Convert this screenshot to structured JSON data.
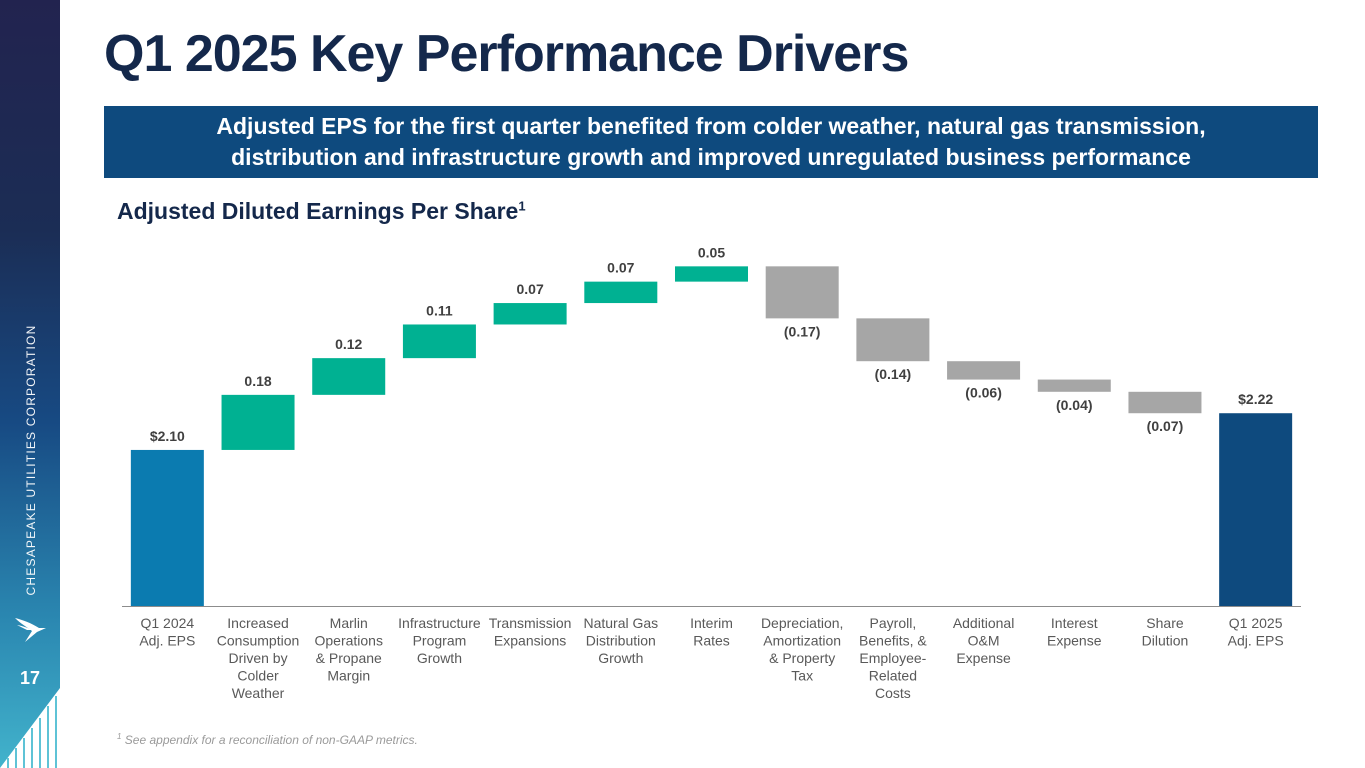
{
  "sidebar": {
    "company": "CHESAPEAKE UTILITIES CORPORATION",
    "logo_icon": "bird-logo-icon",
    "page_number": "17"
  },
  "header": {
    "title": "Q1 2025 Key Performance Drivers",
    "banner_line1": "Adjusted EPS for the first quarter benefited from colder weather, natural gas transmission,",
    "banner_line2": "distribution and infrastructure growth and improved unregulated business performance"
  },
  "chart_section": {
    "subtitle": "Adjusted Diluted Earnings Per Share",
    "subtitle_sup": "1"
  },
  "footnote": {
    "marker": "1",
    "text": "See appendix for a reconciliation of non-GAAP metrics."
  },
  "colors": {
    "start_bar": "#0b7bb0",
    "end_bar": "#0e4a7e",
    "increase": "#00b192",
    "decrease": "#a6a6a6",
    "label": "#404040",
    "category": "#595959"
  },
  "chart_data": {
    "type": "bar",
    "subtype": "waterfall",
    "title": "Adjusted Diluted Earnings Per Share",
    "xlabel": "",
    "ylabel": "",
    "ylim": [
      1.59,
      2.35
    ],
    "grid": false,
    "legend": "none",
    "categories": [
      [
        "Q1 2024",
        "Adj. EPS"
      ],
      [
        "Increased",
        "Consumption",
        "Driven by",
        "Colder",
        "Weather"
      ],
      [
        "Marlin",
        "Operations",
        "& Propane",
        "Margin"
      ],
      [
        "Infrastructure",
        "Program",
        "Growth"
      ],
      [
        "Transmission",
        "Expansions"
      ],
      [
        "Natural Gas",
        "Distribution",
        "Growth"
      ],
      [
        "Interim",
        "Rates"
      ],
      [
        "Depreciation,",
        "Amortization",
        "& Property",
        "Tax"
      ],
      [
        "Payroll,",
        "Benefits, &",
        "Employee-",
        "Related",
        "Costs"
      ],
      [
        "Additional",
        "O&M",
        "Expense"
      ],
      [
        "Interest",
        "Expense"
      ],
      [
        "Share",
        "Dilution"
      ],
      [
        "Q1 2025",
        "Adj. EPS"
      ]
    ],
    "kinds": [
      "total",
      "delta",
      "delta",
      "delta",
      "delta",
      "delta",
      "delta",
      "delta",
      "delta",
      "delta",
      "delta",
      "delta",
      "total"
    ],
    "values": [
      2.1,
      0.18,
      0.12,
      0.11,
      0.07,
      0.07,
      0.05,
      -0.17,
      -0.14,
      -0.06,
      -0.04,
      -0.07,
      2.22
    ],
    "data_labels": [
      "$2.10",
      "0.18",
      "0.12",
      "0.11",
      "0.07",
      "0.07",
      "0.05",
      "(0.17)",
      "(0.14)",
      "(0.06)",
      "(0.04)",
      "(0.07)",
      "$2.22"
    ]
  }
}
